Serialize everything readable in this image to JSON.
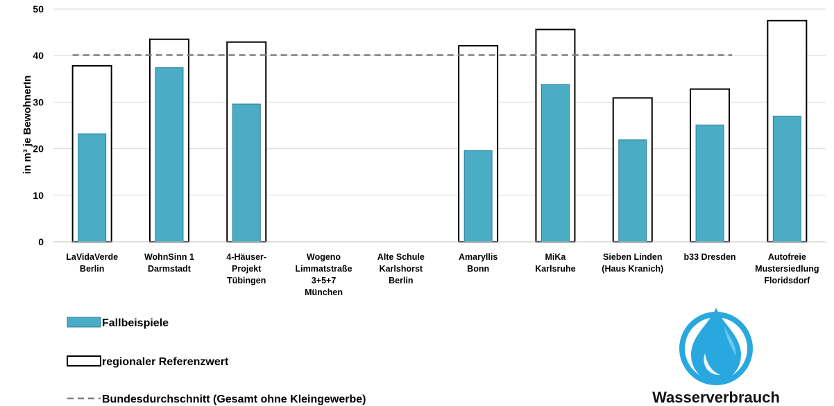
{
  "chart_data": {
    "type": "bar",
    "ylabel": "in m³ je BewohnerIn",
    "ylim": [
      0,
      50
    ],
    "yticks": [
      0,
      10,
      20,
      30,
      40,
      50
    ],
    "grid": true,
    "categories": [
      [
        "LaVidaVerde",
        "Berlin"
      ],
      [
        "WohnSinn 1",
        "Darmstadt"
      ],
      [
        "4-Häuser-",
        "Projekt",
        "Tübingen"
      ],
      [
        "Wogeno",
        "Limmatstraße",
        "3+5+7",
        "München"
      ],
      [
        "Alte Schule",
        "Karlshorst",
        "Berlin"
      ],
      [
        "Amaryllis",
        "Bonn"
      ],
      [
        "MiKa",
        "Karlsruhe"
      ],
      [
        "Sieben Linden",
        "(Haus Kranich)"
      ],
      [
        "b33 Dresden"
      ],
      [
        "Autofreie",
        "Mustersiedlung",
        "Floridsdorf"
      ]
    ],
    "series": [
      {
        "name": "Fallbeispiele",
        "values": [
          23.2,
          37.4,
          29.6,
          null,
          null,
          19.6,
          33.8,
          21.9,
          25.1,
          27.0
        ],
        "color": "#4bacc6"
      },
      {
        "name": "regionaler Referenzwert",
        "values": [
          37.8,
          43.5,
          42.9,
          null,
          null,
          42.1,
          45.6,
          30.9,
          32.8,
          47.5
        ],
        "color": "#ffffff"
      }
    ],
    "reference_line": {
      "name": "Bundesdurchschnitt (Gesamt ohne Kleingewerbe)",
      "value": 40.1,
      "from_category": 0,
      "to_category": 8,
      "color": "#7f7f7f"
    },
    "legend": {
      "placement": "bottom-left",
      "entries": [
        "Fallbeispiele",
        "regionaler Referenzwert",
        "Bundesdurchschnitt (Gesamt ohne Kleingewerbe)"
      ]
    }
  },
  "logo": {
    "name": "water-drop-icon",
    "caption": "Wasserverbrauch",
    "colors": [
      "#29a8e0",
      "#7fd0f5",
      "#ffffff"
    ]
  }
}
